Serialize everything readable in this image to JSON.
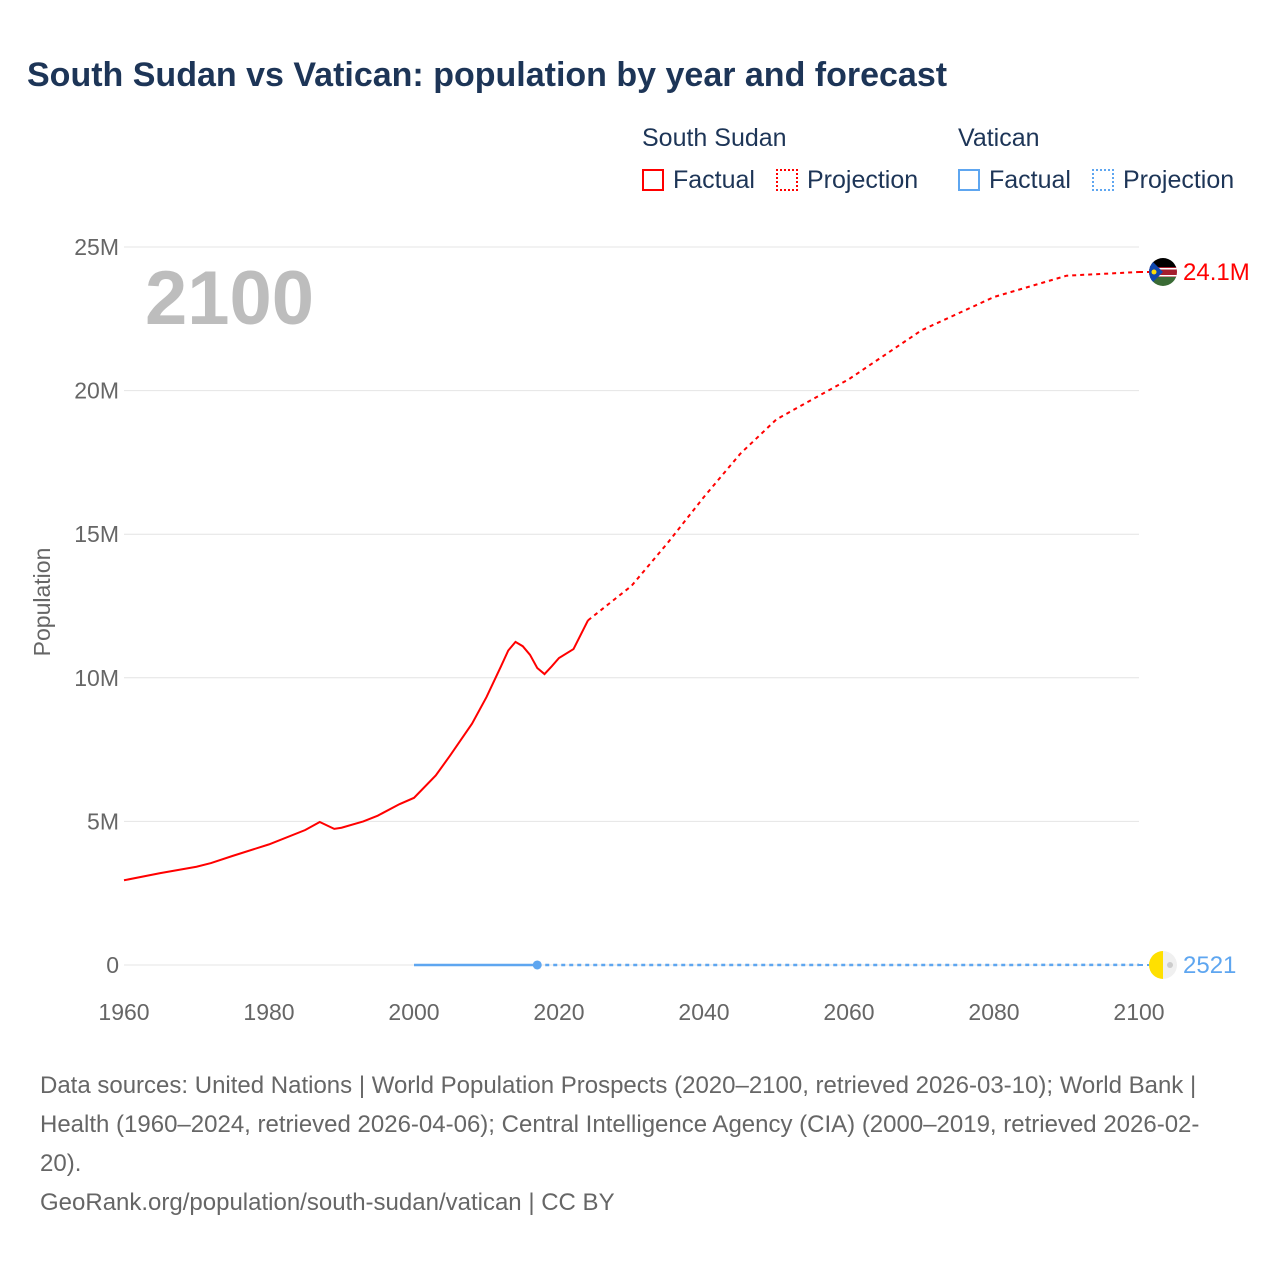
{
  "title": "South Sudan vs Vatican: population by year and forecast",
  "legend": {
    "groups": [
      {
        "name": "South Sudan",
        "factual": "Factual",
        "projection": "Projection",
        "color": "#ff0000"
      },
      {
        "name": "Vatican",
        "factual": "Factual",
        "projection": "Projection",
        "color": "#5ea6f0"
      }
    ]
  },
  "chart_data": {
    "type": "line",
    "title": "South Sudan vs Vatican: population by year and forecast",
    "ylabel": "Population",
    "xlabel": "",
    "xlim": [
      1960,
      2100
    ],
    "ylim": [
      0,
      25000000
    ],
    "grid": true,
    "year_watermark": "2100",
    "xticks": [
      "1960",
      "1980",
      "2000",
      "2020",
      "2040",
      "2060",
      "2080",
      "2100"
    ],
    "yticks": [
      {
        "v": 0,
        "l": "0"
      },
      {
        "v": 5000000,
        "l": "5M"
      },
      {
        "v": 10000000,
        "l": "10M"
      },
      {
        "v": 15000000,
        "l": "15M"
      },
      {
        "v": 20000000,
        "l": "20M"
      },
      {
        "v": 25000000,
        "l": "25M"
      }
    ],
    "series": [
      {
        "name": "South Sudan",
        "kind": "factual",
        "color": "#ff0000",
        "x": [
          1960,
          1965,
          1970,
          1972,
          1975,
          1980,
          1985,
          1987,
          1989,
          1990,
          1993,
          1995,
          1998,
          2000,
          2003,
          2005,
          2008,
          2010,
          2012,
          2013,
          2014,
          2015,
          2016,
          2017,
          2018,
          2019,
          2020,
          2022,
          2024
        ],
        "y": [
          2950000,
          3200000,
          3420000,
          3550000,
          3800000,
          4200000,
          4700000,
          4980000,
          4740000,
          4780000,
          5000000,
          5200000,
          5600000,
          5820000,
          6600000,
          7300000,
          8400000,
          9330000,
          10400000,
          10950000,
          11250000,
          11100000,
          10800000,
          10340000,
          10130000,
          10400000,
          10690000,
          11000000,
          12000000
        ]
      },
      {
        "name": "South Sudan",
        "kind": "projection",
        "color": "#ff0000",
        "x": [
          2024,
          2030,
          2035,
          2040,
          2045,
          2050,
          2060,
          2070,
          2080,
          2090,
          2100
        ],
        "y": [
          12000000,
          13200000,
          14700000,
          16300000,
          17800000,
          19000000,
          20400000,
          22100000,
          23260000,
          24000000,
          24130000
        ]
      },
      {
        "name": "Vatican",
        "kind": "factual",
        "color": "#5ea6f0",
        "x": [
          2000,
          2017
        ],
        "y": [
          800,
          800
        ]
      },
      {
        "name": "Vatican",
        "kind": "projection",
        "color": "#5ea6f0",
        "x": [
          2017,
          2100
        ],
        "y": [
          800,
          2521
        ]
      }
    ],
    "end_labels": [
      {
        "country": "South Sudan",
        "label": "24.1M",
        "value": 24130000,
        "color": "#ff0000"
      },
      {
        "country": "Vatican",
        "label": "2521",
        "value": 2521,
        "color": "#5ea6f0"
      }
    ]
  },
  "footer": {
    "sources": "Data sources: United Nations | World Population Prospects (2020–2100, retrieved 2026-03-10); World Bank | Health (1960–2024, retrieved 2026-04-06); Central Intelligence Agency (CIA) (2000–2019, retrieved 2026-02-20).",
    "credit": "GeoRank.org/population/south-sudan/vatican | CC BY"
  }
}
